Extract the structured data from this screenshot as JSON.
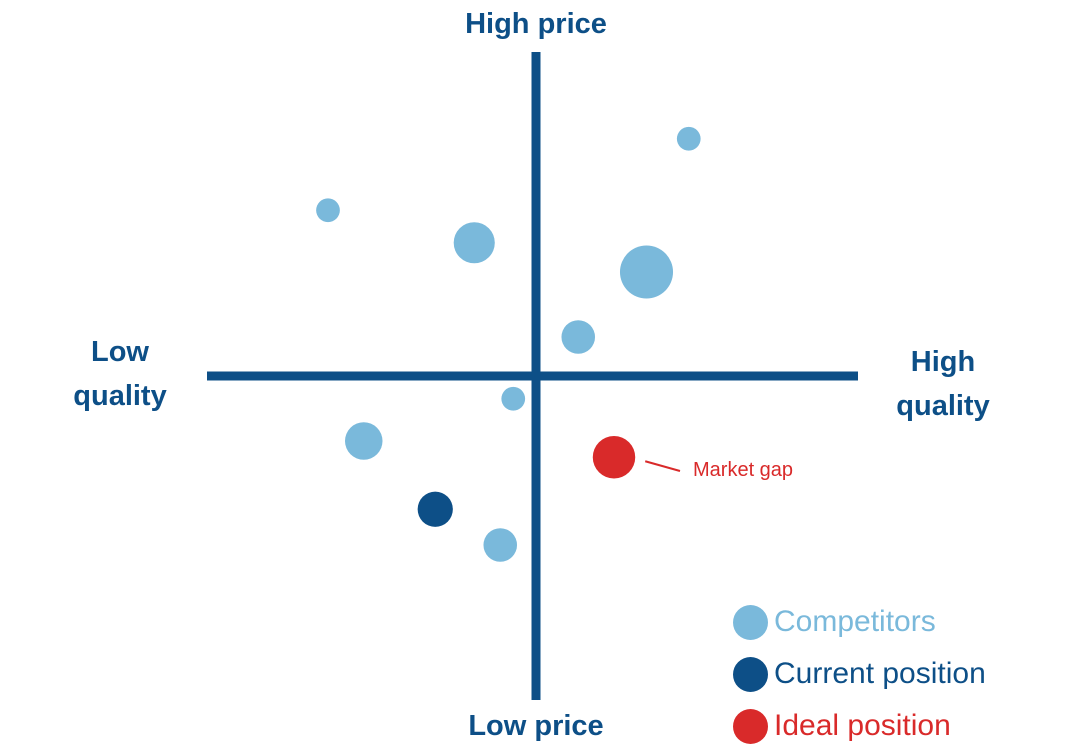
{
  "chart_data": {
    "type": "scatter",
    "axes": {
      "top": "High price",
      "bottom": "Low price",
      "left": "Low\nquality",
      "right": "High\nquality"
    },
    "xlim": [
      -10,
      10
    ],
    "ylim": [
      -10,
      10
    ],
    "points": [
      {
        "series": "Competitors",
        "x": 4.7,
        "y": 7.3,
        "size": 1
      },
      {
        "series": "Competitors",
        "x": -6.4,
        "y": 5.1,
        "size": 1
      },
      {
        "series": "Competitors",
        "x": -1.9,
        "y": 4.1,
        "size": 3
      },
      {
        "series": "Competitors",
        "x": 3.4,
        "y": 3.2,
        "size": 5
      },
      {
        "series": "Competitors",
        "x": 1.3,
        "y": 1.2,
        "size": 2
      },
      {
        "series": "Competitors",
        "x": -0.7,
        "y": -0.7,
        "size": 1
      },
      {
        "series": "Competitors",
        "x": -5.3,
        "y": -2.0,
        "size": 2.5
      },
      {
        "series": "Competitors",
        "x": -1.1,
        "y": -5.2,
        "size": 2
      },
      {
        "series": "Current position",
        "x": -3.1,
        "y": -4.1,
        "size": 2.2
      },
      {
        "series": "Ideal position",
        "x": 2.4,
        "y": -2.5,
        "size": 3.2
      }
    ],
    "legend": [
      {
        "name": "Competitors",
        "color": "#7ab9db"
      },
      {
        "name": "Current position",
        "color": "#0d4f87"
      },
      {
        "name": "Ideal position",
        "color": "#d92a2a"
      }
    ],
    "legend_position": "bottom-right",
    "annotations": [
      {
        "text": "Market gap",
        "target": "Ideal position",
        "color": "#d92a2a"
      }
    ],
    "colors": {
      "axis": "#0d4f87",
      "label": "#0d4f87"
    }
  }
}
